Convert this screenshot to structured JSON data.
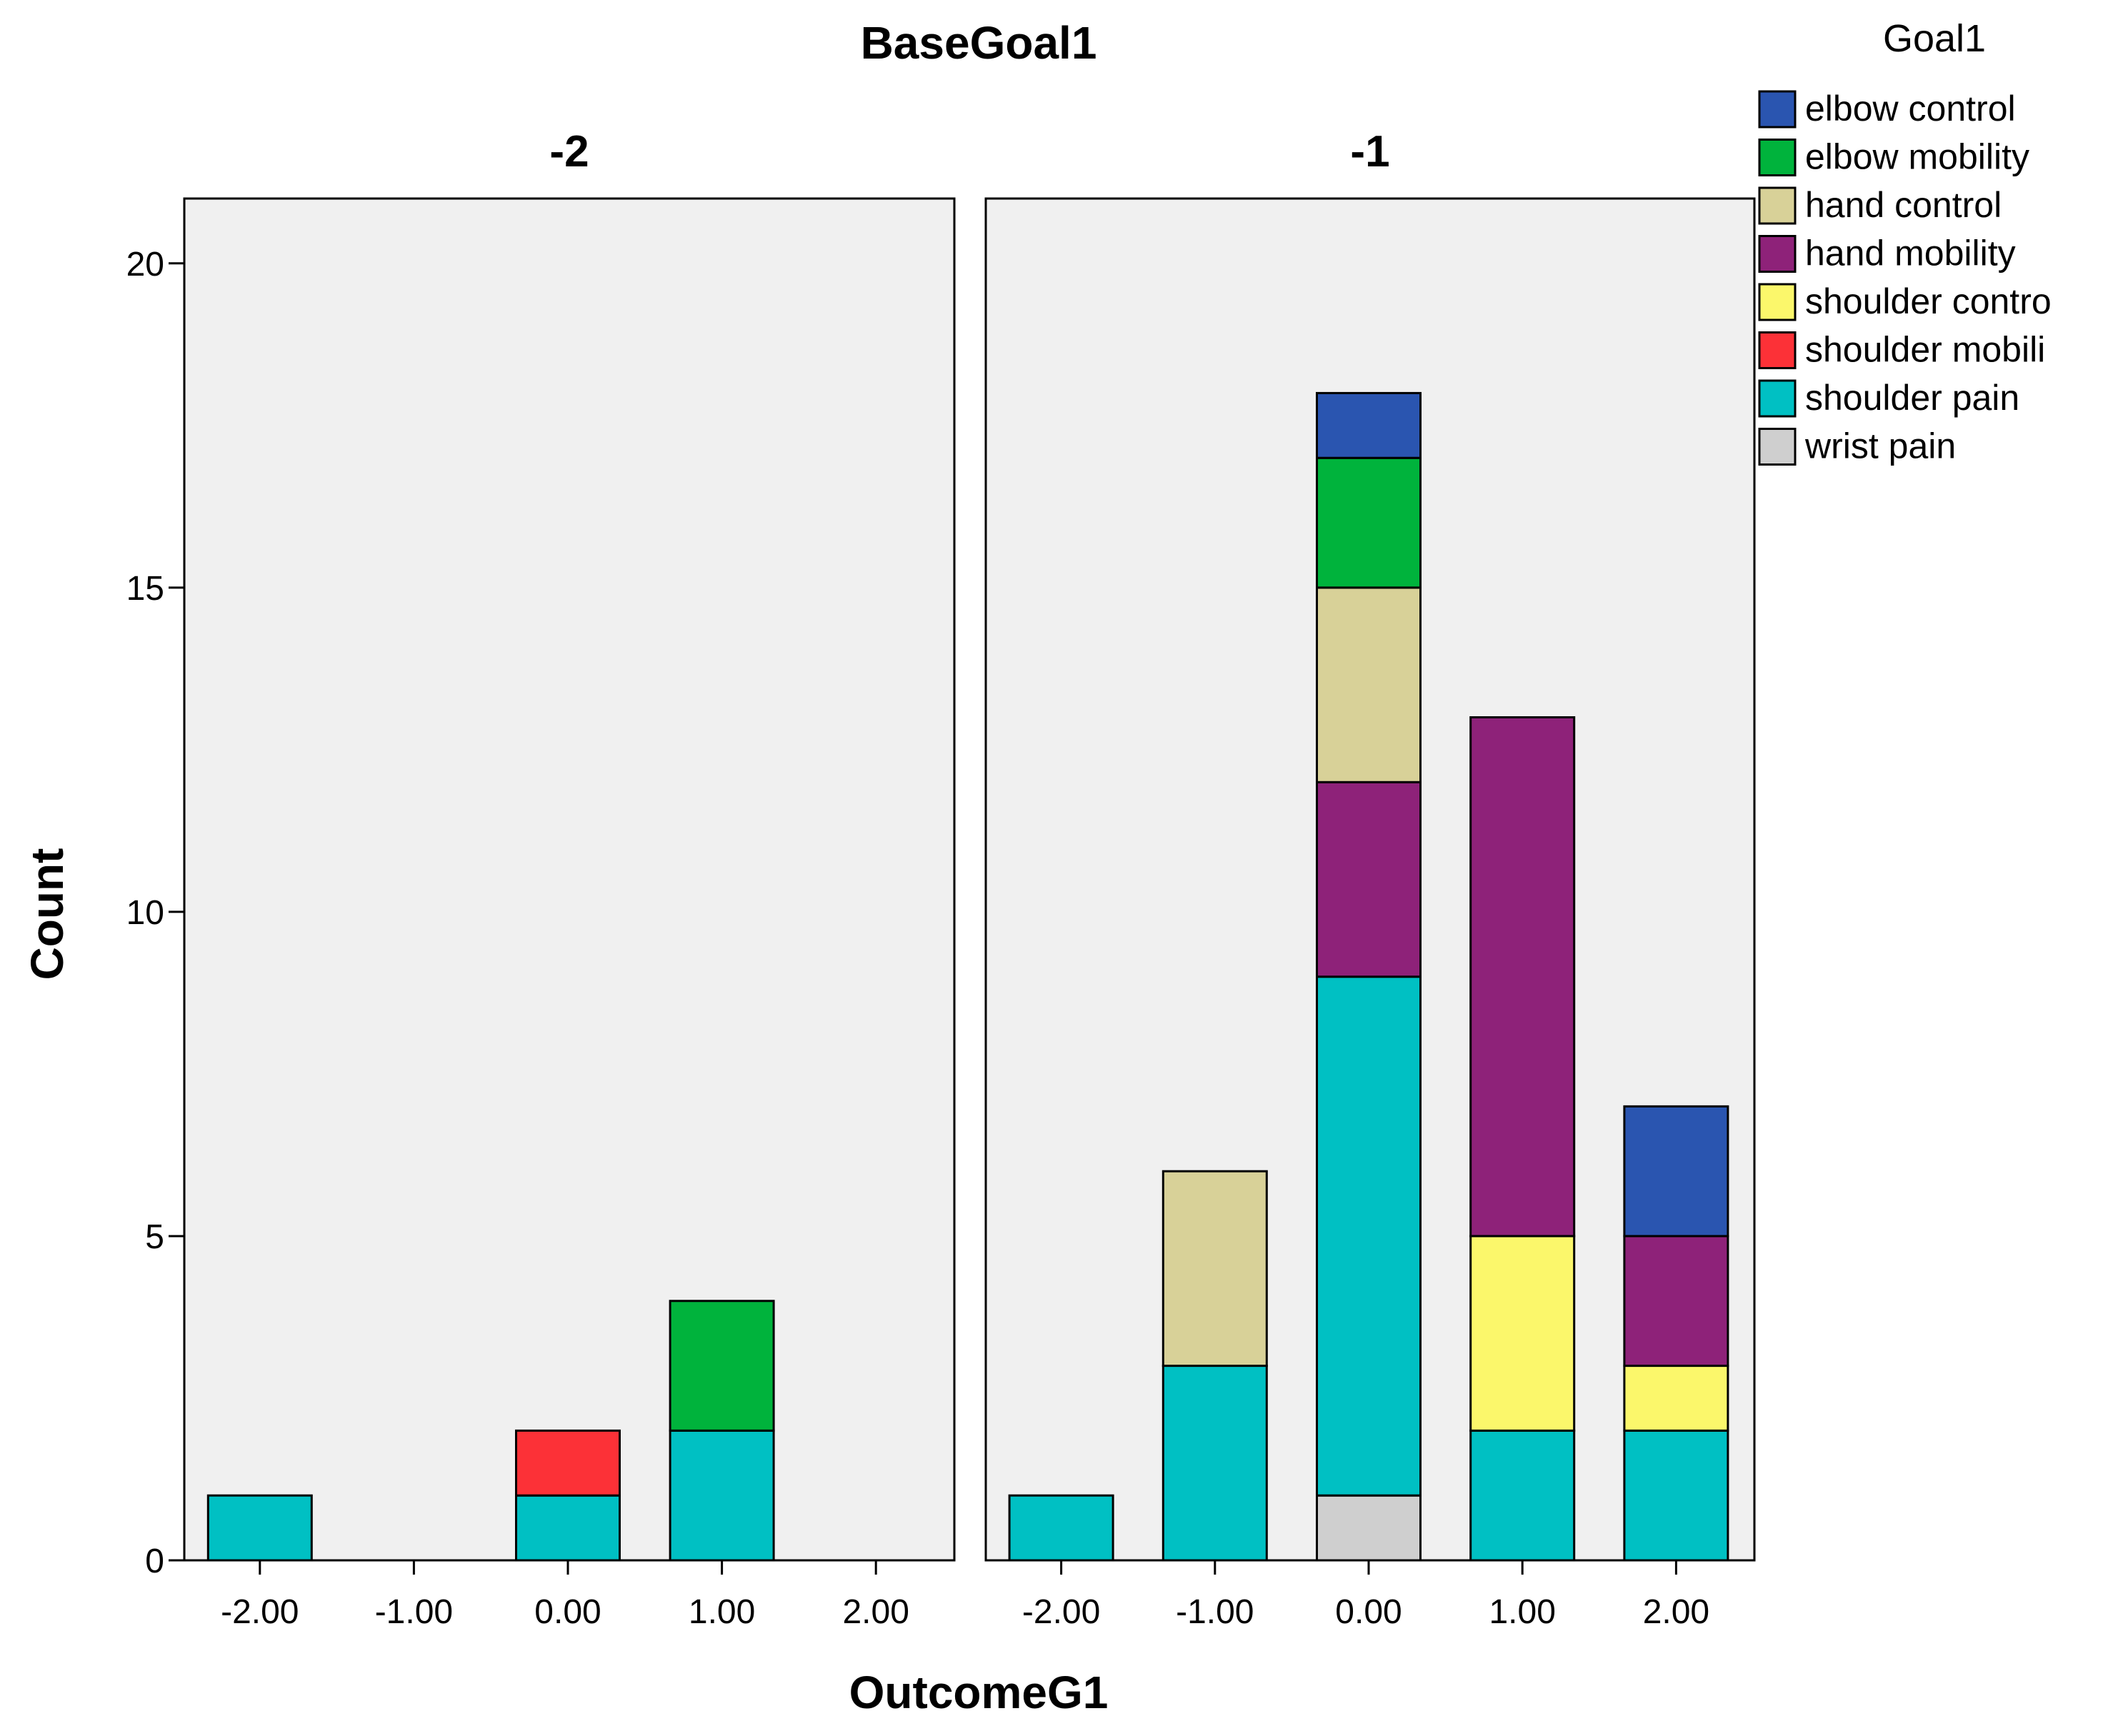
{
  "chart_data": {
    "type": "bar",
    "stacked": true,
    "title": "BaseGoal1",
    "xlabel": "OutcomeG1",
    "ylabel": "Count",
    "ylim": [
      0,
      21
    ],
    "yticks": [
      0,
      5,
      10,
      15,
      20
    ],
    "categories": [
      "-2.00",
      "-1.00",
      "0.00",
      "1.00",
      "2.00"
    ],
    "legend": {
      "title": "Goal1",
      "position": "top-right",
      "items": [
        {
          "key": "elbow_control",
          "label": "elbow control",
          "color": "#2a55b0"
        },
        {
          "key": "elbow_mobility",
          "label": "elbow mobility",
          "color": "#00b33c"
        },
        {
          "key": "hand_control",
          "label": "hand control",
          "color": "#d8d198"
        },
        {
          "key": "hand_mobility",
          "label": "hand mobility",
          "color": "#8e2279"
        },
        {
          "key": "shoulder_control",
          "label": "shoulder contro",
          "color": "#fbf76b"
        },
        {
          "key": "shoulder_mobility",
          "label": "shoulder mobili",
          "color": "#fc3137"
        },
        {
          "key": "shoulder_pain",
          "label": "shoulder pain",
          "color": "#00c0c3"
        },
        {
          "key": "wrist_pain",
          "label": "wrist pain",
          "color": "#cfcfcf"
        }
      ]
    },
    "panels": [
      {
        "label": "-2",
        "bars": [
          {
            "category": "-2.00",
            "segments": [
              {
                "key": "shoulder_pain",
                "value": 1
              }
            ]
          },
          {
            "category": "-1.00",
            "segments": []
          },
          {
            "category": "0.00",
            "segments": [
              {
                "key": "shoulder_pain",
                "value": 1
              },
              {
                "key": "shoulder_mobility",
                "value": 1
              }
            ]
          },
          {
            "category": "1.00",
            "segments": [
              {
                "key": "shoulder_pain",
                "value": 2
              },
              {
                "key": "elbow_mobility",
                "value": 2
              }
            ]
          },
          {
            "category": "2.00",
            "segments": []
          }
        ]
      },
      {
        "label": "-1",
        "bars": [
          {
            "category": "-2.00",
            "segments": [
              {
                "key": "shoulder_pain",
                "value": 1
              }
            ]
          },
          {
            "category": "-1.00",
            "segments": [
              {
                "key": "shoulder_pain",
                "value": 3
              },
              {
                "key": "hand_control",
                "value": 3
              }
            ]
          },
          {
            "category": "0.00",
            "segments": [
              {
                "key": "wrist_pain",
                "value": 1
              },
              {
                "key": "shoulder_pain",
                "value": 8
              },
              {
                "key": "hand_mobility",
                "value": 3
              },
              {
                "key": "hand_control",
                "value": 3
              },
              {
                "key": "elbow_mobility",
                "value": 2
              },
              {
                "key": "elbow_control",
                "value": 1
              }
            ]
          },
          {
            "category": "1.00",
            "segments": [
              {
                "key": "shoulder_pain",
                "value": 2
              },
              {
                "key": "shoulder_control",
                "value": 3
              },
              {
                "key": "hand_mobility",
                "value": 8
              }
            ]
          },
          {
            "category": "2.00",
            "segments": [
              {
                "key": "shoulder_pain",
                "value": 2
              },
              {
                "key": "shoulder_control",
                "value": 1
              },
              {
                "key": "hand_mobility",
                "value": 2
              },
              {
                "key": "elbow_control",
                "value": 2
              }
            ]
          }
        ]
      }
    ]
  }
}
